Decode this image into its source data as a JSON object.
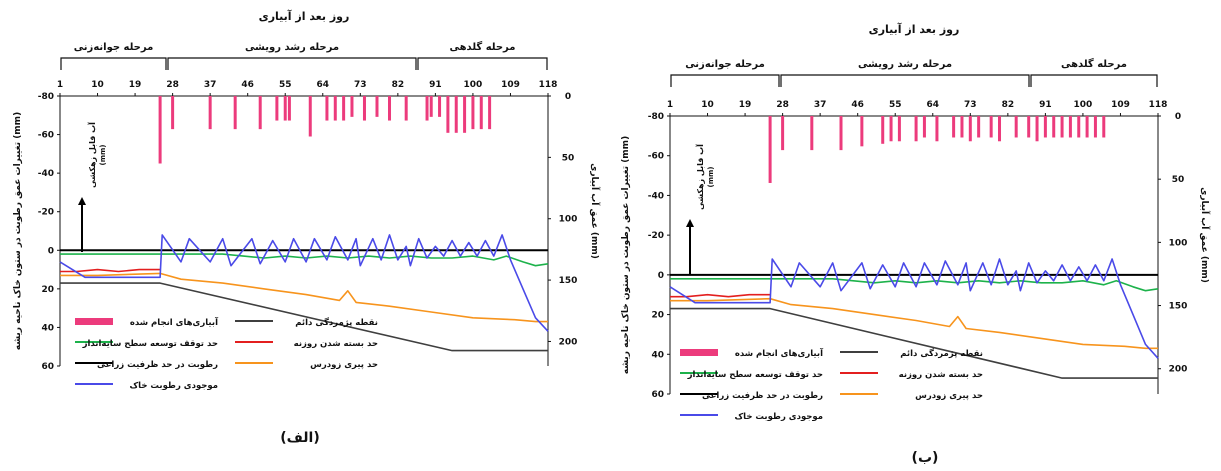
{
  "figure": {
    "top_axis_title": "روز بعد از آبیاری",
    "stages": [
      "مرحله جوانه‌زنی",
      "مرحله رشد رویشی",
      "مرحله گلدهی"
    ],
    "y_left_label": "تغییرات عمق رطوبت در ستون خاک ناحیه ریشه (mm)",
    "y_right_label": "عمق آب آبیاری (mm)",
    "arrow_label_line1": "آب قابل زهکشی",
    "arrow_label_line2": "(mm)"
  },
  "chart_data": [
    {
      "panel_label": "(ب)",
      "type": "line",
      "x_ticks": [
        "1",
        "10",
        "19",
        "28",
        "37",
        "46",
        "55",
        "64",
        "73",
        "82",
        "91",
        "100",
        "109",
        "118"
      ],
      "xlim": [
        1,
        118
      ],
      "y_left_ticks": [
        "-80",
        "-60",
        "-40",
        "-20",
        "0",
        "20",
        "40",
        "60"
      ],
      "ylim_left": [
        -80,
        60
      ],
      "y_right_ticks": [
        "0",
        "50",
        "100",
        "150",
        "200"
      ],
      "ylim_right": [
        0,
        220
      ],
      "legend": [
        "آبیاری‌های انجام شده",
        "نقطه پژمردگی دائم",
        "حد توقف توسعه سطح سایه‌انداز",
        "حد بسته شدن روزنه",
        "رطوبت در حد ظرفیت زراعی",
        "حد پیری زودرس",
        "موجودی رطوبت خاک"
      ],
      "irrigations": {
        "x": [
          25,
          28,
          35,
          42,
          47,
          52,
          54,
          56,
          60,
          62,
          65,
          69,
          71,
          73,
          75,
          78,
          80,
          84,
          87,
          89,
          91,
          93,
          95,
          97,
          99,
          101,
          103,
          105
        ],
        "depth": [
          53,
          27,
          27,
          27,
          24,
          22,
          20,
          20,
          20,
          17,
          20,
          17,
          17,
          20,
          17,
          17,
          20,
          17,
          17,
          20,
          17,
          17,
          17,
          17,
          17,
          17,
          17,
          17
        ]
      },
      "series": [
        {
          "name": "رطوبت در حد ظرفیت زراعی",
          "x": [
            1,
            118
          ],
          "y": [
            0,
            0
          ]
        },
        {
          "name": "نقطه پژمردگی دائم",
          "x": [
            1,
            25,
            95,
            118
          ],
          "y": [
            17,
            17,
            52,
            52
          ]
        },
        {
          "name": "حد توقف توسعه سطح سایه‌انداز",
          "x": [
            1,
            40,
            45,
            50,
            55,
            60,
            65,
            70,
            75,
            80,
            85,
            90,
            95,
            100,
            105,
            108,
            112,
            115,
            118
          ],
          "y": [
            2,
            2,
            3,
            4,
            3,
            4,
            3,
            4,
            3,
            4,
            3,
            4,
            4,
            3,
            5,
            3,
            6,
            8,
            7
          ]
        },
        {
          "name": "حد بسته شدن روزنه",
          "x": [
            1,
            5,
            10,
            15,
            20,
            25
          ],
          "y": [
            11,
            11,
            10,
            11,
            10,
            10
          ]
        },
        {
          "name": "حد پیری زودرس",
          "x": [
            1,
            10,
            25,
            30,
            40,
            50,
            60,
            68,
            70,
            72,
            80,
            90,
            100,
            110,
            115,
            118
          ],
          "y": [
            13,
            13,
            12,
            15,
            17,
            20,
            23,
            26,
            21,
            27,
            29,
            32,
            35,
            36,
            37,
            37
          ]
        },
        {
          "name": "موجودی رطوبت خاک",
          "x": [
            1,
            7,
            25,
            25.5,
            30,
            32,
            37,
            40,
            42,
            47,
            49,
            52,
            55,
            57,
            60,
            62,
            65,
            67,
            70,
            72,
            73,
            76,
            78,
            80,
            82,
            84,
            85,
            87,
            89,
            91,
            93,
            95,
            97,
            99,
            101,
            103,
            105,
            107,
            109,
            112,
            115,
            118
          ],
          "y": [
            6,
            14,
            14,
            -8,
            6,
            -6,
            6,
            -6,
            8,
            -6,
            7,
            -5,
            6,
            -6,
            6,
            -6,
            5,
            -7,
            5,
            -6,
            8,
            -6,
            5,
            -8,
            5,
            -2,
            8,
            -6,
            4,
            -2,
            3,
            -5,
            3,
            -4,
            3,
            -5,
            3,
            -8,
            5,
            20,
            35,
            42
          ]
        }
      ]
    },
    {
      "panel_label": "(الف)",
      "type": "line",
      "x_ticks": [
        "1",
        "10",
        "19",
        "28",
        "37",
        "46",
        "55",
        "64",
        "73",
        "82",
        "91",
        "100",
        "109",
        "118"
      ],
      "xlim": [
        1,
        118
      ],
      "y_left_ticks": [
        "-80",
        "-60",
        "-40",
        "-20",
        "0",
        "20",
        "40",
        "60"
      ],
      "ylim_left": [
        -80,
        60
      ],
      "y_right_ticks": [
        "0",
        "50",
        "100",
        "150",
        "200"
      ],
      "ylim_right": [
        0,
        220
      ],
      "legend": [
        "آبیاری‌های انجام شده",
        "نقطه پژمردگی دائم",
        "حد توقف توسعه سطح سایه‌انداز",
        "حد بسته شدن روزنه",
        "رطوبت در حد ظرفیت زراعی",
        "حد پیری زودرس",
        "موجودی رطوبت خاک"
      ],
      "irrigations": {
        "x": [
          25,
          28,
          37,
          43,
          49,
          53,
          55,
          56,
          61,
          65,
          67,
          69,
          71,
          74,
          77,
          80,
          84,
          89,
          90,
          92,
          94,
          96,
          98,
          100,
          102,
          104
        ],
        "depth": [
          55,
          27,
          27,
          27,
          27,
          20,
          20,
          20,
          33,
          20,
          20,
          20,
          17,
          20,
          17,
          20,
          20,
          20,
          17,
          17,
          30,
          30,
          30,
          27,
          27,
          27
        ]
      },
      "series": [
        {
          "name": "رطوبت در حد ظرفیت زراعی",
          "x": [
            1,
            118
          ],
          "y": [
            0,
            0
          ]
        },
        {
          "name": "نقطه پژمردگی دائم",
          "x": [
            1,
            25,
            95,
            118
          ],
          "y": [
            17,
            17,
            52,
            52
          ]
        },
        {
          "name": "حد توقف توسعه سطح سایه‌انداز",
          "x": [
            1,
            40,
            45,
            50,
            55,
            60,
            65,
            70,
            75,
            80,
            85,
            90,
            95,
            100,
            105,
            108,
            112,
            115,
            118
          ],
          "y": [
            2,
            2,
            3,
            4,
            3,
            4,
            3,
            4,
            3,
            4,
            3,
            4,
            4,
            3,
            5,
            3,
            6,
            8,
            7
          ]
        },
        {
          "name": "حد بسته شدن روزنه",
          "x": [
            1,
            5,
            10,
            15,
            20,
            25
          ],
          "y": [
            11,
            11,
            10,
            11,
            10,
            10
          ]
        },
        {
          "name": "حد پیری زودرس",
          "x": [
            1,
            10,
            25,
            30,
            40,
            50,
            60,
            68,
            70,
            72,
            80,
            90,
            100,
            110,
            115,
            118
          ],
          "y": [
            13,
            13,
            12,
            15,
            17,
            20,
            23,
            26,
            21,
            27,
            29,
            32,
            35,
            36,
            37,
            37
          ]
        },
        {
          "name": "موجودی رطوبت خاک",
          "x": [
            1,
            7,
            25,
            25.5,
            30,
            32,
            37,
            40,
            42,
            47,
            49,
            52,
            55,
            57,
            60,
            62,
            65,
            67,
            70,
            72,
            73,
            76,
            78,
            80,
            82,
            84,
            85,
            87,
            89,
            91,
            93,
            95,
            97,
            99,
            101,
            103,
            105,
            107,
            109,
            112,
            115,
            118
          ],
          "y": [
            6,
            14,
            14,
            -8,
            6,
            -6,
            6,
            -6,
            8,
            -6,
            7,
            -5,
            6,
            -6,
            6,
            -6,
            5,
            -7,
            5,
            -6,
            8,
            -6,
            5,
            -8,
            5,
            -2,
            8,
            -6,
            4,
            -2,
            3,
            -5,
            3,
            -4,
            3,
            -5,
            3,
            -8,
            5,
            20,
            35,
            42
          ]
        }
      ]
    }
  ],
  "colors": {
    "irrigation": "#ec3b7c",
    "wilting": "#3f3f3f",
    "canopy": "#1db24b",
    "stomata": "#e31f1f",
    "field_capacity": "#000000",
    "senescence": "#f7941d",
    "soil_water": "#4a4ae8"
  }
}
